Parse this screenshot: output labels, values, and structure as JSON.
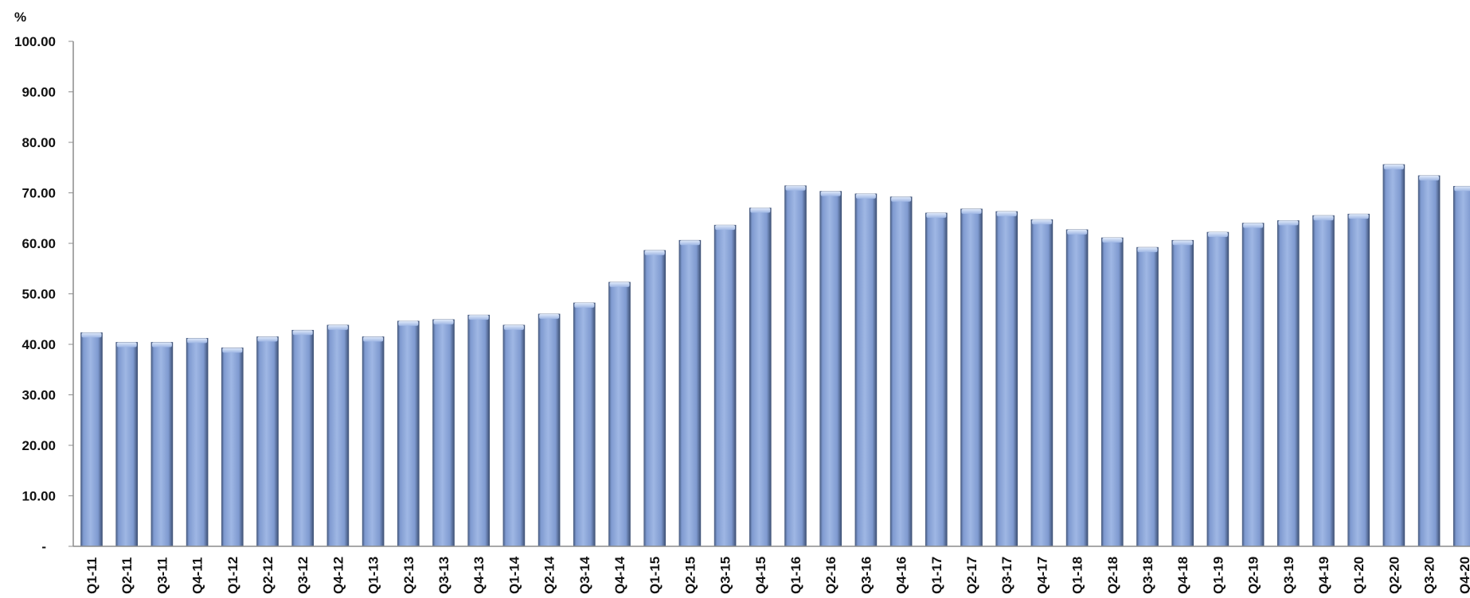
{
  "chart_data": {
    "type": "bar",
    "title": "",
    "xlabel": "",
    "ylabel": "%",
    "ylim": [
      0,
      100
    ],
    "yticks": [
      {
        "value": 0,
        "label": "-"
      },
      {
        "value": 10,
        "label": "10.00"
      },
      {
        "value": 20,
        "label": "20.00"
      },
      {
        "value": 30,
        "label": "30.00"
      },
      {
        "value": 40,
        "label": "40.00"
      },
      {
        "value": 50,
        "label": "50.00"
      },
      {
        "value": 60,
        "label": "60.00"
      },
      {
        "value": 70,
        "label": "70.00"
      },
      {
        "value": 80,
        "label": "80.00"
      },
      {
        "value": 90,
        "label": "90.00"
      },
      {
        "value": 100,
        "label": "100.00"
      }
    ],
    "grid": false,
    "legend": "none",
    "colors": {
      "bar": "#8eaadc",
      "bar_light": "#c8d8f2",
      "bar_dark": "#4a5f86",
      "axis": "#8c8c8c"
    },
    "categories": [
      "Q1-11",
      "Q2-11",
      "Q3-11",
      "Q4-11",
      "Q1-12",
      "Q2-12",
      "Q3-12",
      "Q4-12",
      "Q1-13",
      "Q2-13",
      "Q3-13",
      "Q4-13",
      "Q1-14",
      "Q2-14",
      "Q3-14",
      "Q4-14",
      "Q1-15",
      "Q2-15",
      "Q3-15",
      "Q4-15",
      "Q1-16",
      "Q2-16",
      "Q3-16",
      "Q4-16",
      "Q1-17",
      "Q2-17",
      "Q3-17",
      "Q4-17",
      "Q1-18",
      "Q2-18",
      "Q3-18",
      "Q4-18",
      "Q1-19",
      "Q2-19",
      "Q3-19",
      "Q4-19",
      "Q1-20",
      "Q2-20",
      "Q3-20",
      "Q4-20"
    ],
    "values": [
      42.3,
      40.4,
      40.4,
      41.2,
      39.3,
      41.5,
      42.8,
      43.8,
      41.5,
      44.6,
      44.9,
      45.8,
      43.8,
      46.0,
      48.2,
      52.3,
      58.6,
      60.6,
      63.6,
      67.0,
      71.4,
      70.3,
      69.8,
      69.2,
      66.0,
      66.8,
      66.3,
      64.7,
      62.7,
      61.1,
      59.2,
      60.6,
      62.2,
      64.0,
      64.5,
      65.5,
      65.8,
      75.6,
      73.4,
      71.3
    ]
  }
}
